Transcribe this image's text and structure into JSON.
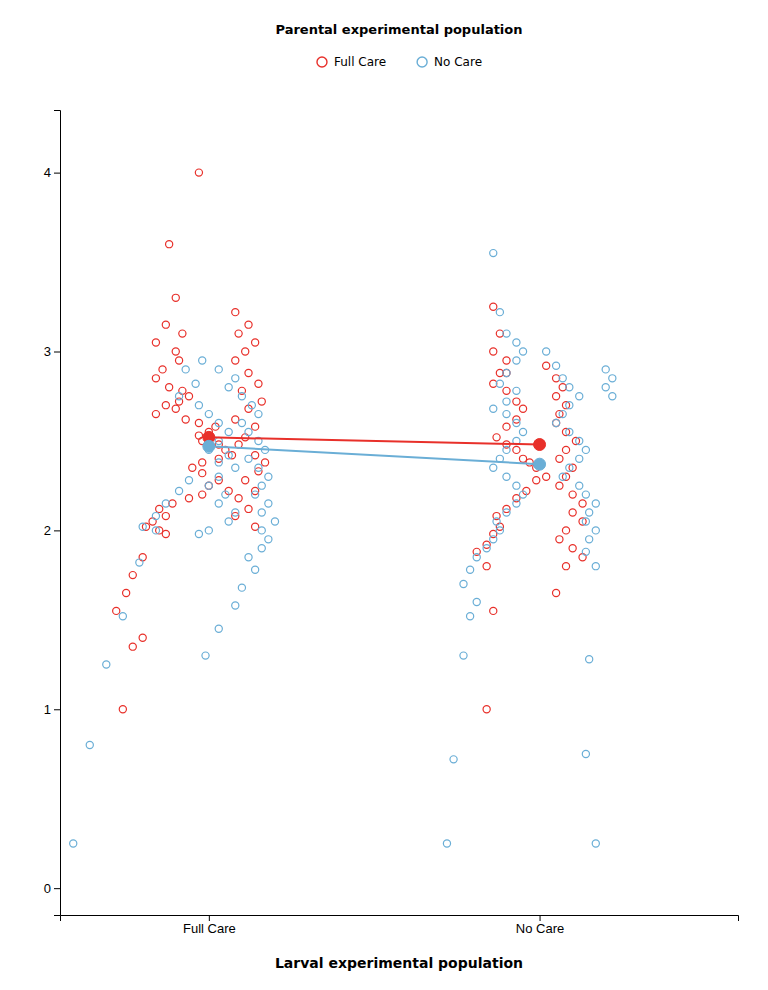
{
  "chart_data": {
    "type": "scatter",
    "title": "Parental experimental population",
    "xlabel": "Larval experimental population",
    "xlim": [
      0.55,
      2.6
    ],
    "ylim": [
      -0.15,
      4.35
    ],
    "xticks": [
      {
        "value": 1,
        "label": "Full Care"
      },
      {
        "value": 2,
        "label": "No Care"
      }
    ],
    "yticks": [
      0,
      1,
      2,
      3,
      4
    ],
    "grid": false,
    "legend": "top",
    "series": [
      {
        "name": "Full Care",
        "color": "#E8302A",
        "marker": "circle-open",
        "x": [
          0.97,
          0.88,
          0.9,
          0.87,
          0.92,
          0.84,
          0.9,
          0.91,
          0.86,
          0.84,
          0.88,
          0.92,
          0.94,
          0.91,
          0.87,
          0.9,
          0.84,
          0.93,
          0.97,
          1.02,
          1.0,
          0.97,
          0.98,
          1.03,
          1.05,
          1.07,
          1.03,
          0.98,
          0.95,
          0.98,
          1.03,
          1.0,
          1.06,
          0.98,
          0.94,
          0.89,
          0.85,
          0.87,
          0.83,
          0.81,
          0.85,
          0.87,
          0.8,
          0.77,
          0.75,
          0.72,
          0.8,
          0.77,
          0.74,
          1.08,
          1.12,
          1.09,
          1.14,
          1.11,
          1.08,
          1.12,
          1.15,
          1.1,
          1.16,
          1.12,
          1.08,
          1.14,
          1.11,
          1.09,
          1.14,
          1.17,
          1.15,
          1.11,
          1.14,
          1.09,
          1.12,
          1.08,
          1.14,
          1.86,
          1.88,
          1.86,
          1.9,
          1.88,
          1.86,
          1.9,
          1.93,
          1.95,
          1.93,
          1.9,
          1.87,
          1.9,
          1.93,
          1.95,
          1.97,
          1.99,
          2.02,
          1.99,
          1.96,
          1.93,
          1.9,
          1.87,
          1.88,
          1.86,
          1.84,
          1.81,
          1.84,
          1.86,
          1.84,
          2.02,
          2.05,
          2.07,
          2.05,
          2.08,
          2.06,
          2.05,
          2.08,
          2.11,
          2.08,
          2.06,
          2.1,
          2.08,
          2.06,
          2.1,
          2.13,
          2.1,
          2.13,
          2.08,
          2.06,
          2.1,
          2.13,
          2.08,
          2.05,
          1.9
        ],
        "values": [
          4.0,
          3.6,
          3.3,
          3.15,
          3.1,
          3.05,
          3.0,
          2.95,
          2.9,
          2.85,
          2.8,
          2.78,
          2.75,
          2.72,
          2.7,
          2.68,
          2.65,
          2.62,
          2.6,
          2.58,
          2.55,
          2.53,
          2.5,
          2.48,
          2.45,
          2.42,
          2.4,
          2.38,
          2.35,
          2.32,
          2.28,
          2.25,
          2.22,
          2.2,
          2.18,
          2.15,
          2.12,
          2.08,
          2.05,
          2.02,
          2.0,
          1.98,
          1.85,
          1.75,
          1.65,
          1.55,
          1.4,
          1.35,
          1.0,
          3.22,
          3.15,
          3.1,
          3.05,
          3.0,
          2.95,
          2.88,
          2.82,
          2.78,
          2.72,
          2.68,
          2.62,
          2.58,
          2.52,
          2.48,
          2.42,
          2.38,
          2.33,
          2.28,
          2.22,
          2.18,
          2.12,
          2.08,
          2.02,
          3.25,
          3.1,
          3.0,
          2.95,
          2.88,
          2.82,
          2.78,
          2.72,
          2.68,
          2.62,
          2.58,
          2.52,
          2.48,
          2.45,
          2.4,
          2.38,
          2.35,
          2.3,
          2.28,
          2.22,
          2.18,
          2.12,
          2.08,
          2.02,
          1.98,
          1.92,
          1.88,
          1.8,
          1.55,
          1.0,
          2.92,
          2.85,
          2.8,
          2.75,
          2.7,
          2.65,
          2.6,
          2.55,
          2.5,
          2.45,
          2.4,
          2.35,
          2.3,
          2.25,
          2.2,
          2.15,
          2.1,
          2.05,
          2.0,
          1.95,
          1.9,
          1.85,
          1.8,
          1.65,
          2.88
        ]
      },
      {
        "name": "No Care",
        "color": "#6aaed6",
        "marker": "circle-open",
        "x": [
          0.93,
          0.96,
          0.91,
          0.97,
          1.0,
          1.03,
          1.06,
          1.03,
          1.0,
          1.06,
          1.03,
          1.08,
          1.03,
          1.0,
          1.05,
          1.03,
          1.08,
          1.06,
          1.0,
          0.97,
          0.94,
          0.91,
          0.87,
          0.84,
          0.8,
          0.84,
          0.79,
          0.74,
          0.69,
          0.64,
          0.59,
          0.98,
          1.03,
          1.08,
          1.06,
          1.1,
          1.13,
          1.15,
          1.1,
          1.12,
          1.15,
          1.17,
          1.12,
          1.15,
          1.18,
          1.16,
          1.14,
          1.18,
          1.16,
          1.2,
          1.16,
          1.18,
          1.16,
          1.12,
          1.14,
          1.1,
          1.08,
          1.03,
          0.99,
          1.86,
          1.88,
          1.9,
          1.93,
          1.95,
          1.93,
          1.9,
          1.88,
          1.93,
          1.9,
          1.86,
          1.9,
          1.93,
          1.95,
          1.93,
          1.9,
          1.88,
          1.86,
          1.9,
          1.93,
          1.95,
          1.93,
          1.9,
          1.87,
          1.88,
          1.86,
          1.84,
          1.81,
          1.79,
          1.77,
          1.81,
          1.79,
          1.77,
          1.74,
          1.72,
          2.02,
          2.05,
          2.07,
          2.09,
          2.12,
          2.09,
          2.07,
          2.05,
          2.09,
          2.12,
          2.14,
          2.12,
          2.09,
          2.07,
          2.12,
          2.14,
          2.17,
          2.15,
          2.14,
          2.17,
          2.15,
          2.14,
          2.17,
          2.15,
          2.14,
          2.17,
          2.2,
          2.22,
          2.2,
          2.22
        ],
        "values": [
          2.9,
          2.82,
          2.75,
          2.7,
          2.65,
          2.6,
          2.55,
          2.5,
          2.45,
          2.42,
          2.38,
          2.35,
          2.3,
          2.25,
          2.2,
          2.15,
          2.1,
          2.05,
          2.0,
          1.98,
          2.28,
          2.22,
          2.15,
          2.08,
          2.02,
          2.0,
          1.82,
          1.52,
          1.25,
          0.8,
          0.25,
          2.95,
          2.9,
          2.85,
          2.8,
          2.75,
          2.7,
          2.65,
          2.6,
          2.55,
          2.5,
          2.45,
          2.4,
          2.35,
          2.3,
          2.25,
          2.2,
          2.15,
          2.1,
          2.05,
          2.0,
          1.95,
          1.9,
          1.85,
          1.78,
          1.68,
          1.58,
          1.45,
          1.3,
          3.55,
          3.22,
          3.1,
          3.05,
          3.0,
          2.95,
          2.88,
          2.82,
          2.78,
          2.72,
          2.68,
          2.65,
          2.6,
          2.55,
          2.5,
          2.45,
          2.4,
          2.35,
          2.3,
          2.25,
          2.2,
          2.15,
          2.1,
          2.05,
          2.0,
          1.95,
          1.9,
          1.85,
          1.78,
          1.7,
          1.6,
          1.52,
          1.3,
          0.72,
          0.25,
          3.0,
          2.92,
          2.85,
          2.8,
          2.75,
          2.7,
          2.65,
          2.6,
          2.55,
          2.5,
          2.45,
          2.4,
          2.35,
          2.3,
          2.25,
          2.2,
          2.15,
          2.1,
          2.05,
          2.0,
          1.95,
          1.88,
          1.8,
          1.28,
          0.75,
          0.25,
          2.9,
          2.85,
          2.8,
          2.75
        ]
      },
      {
        "type": "line",
        "color": "#E8302A",
        "marker": "circle",
        "line_style": "solid",
        "x": [
          1.0,
          2.0
        ],
        "values": [
          2.52,
          2.48
        ]
      },
      {
        "type": "line",
        "color": "#6aaed6",
        "marker": "circle",
        "line_style": "solid",
        "x": [
          1.0,
          2.0
        ],
        "values": [
          2.47,
          2.37
        ]
      }
    ]
  }
}
